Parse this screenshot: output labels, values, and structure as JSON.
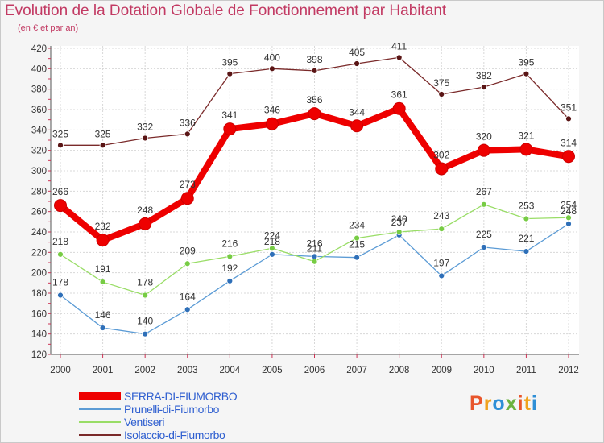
{
  "header": {
    "title": "Evolution de la Dotation Globale de Fonctionnement par Habitant",
    "subtitle": "(en € et par an)"
  },
  "logo": {
    "text": "Proxiti",
    "colors": [
      "#e8552b",
      "#f0a21c",
      "#2e8fd6",
      "#6cb33f",
      "#e8552b",
      "#f0a21c",
      "#2e8fd6"
    ]
  },
  "chart_data": {
    "type": "line",
    "x": [
      "2000",
      "2001",
      "2002",
      "2003",
      "2004",
      "2005",
      "2006",
      "2007",
      "2008",
      "2009",
      "2010",
      "2011",
      "2012"
    ],
    "ylim": [
      120,
      420
    ],
    "yticks": [
      120,
      140,
      160,
      180,
      200,
      220,
      240,
      260,
      280,
      300,
      320,
      340,
      360,
      380,
      400,
      420
    ],
    "grid": true,
    "legend_position": "bottom-left",
    "series": [
      {
        "name": "SERRA-DI-FIUMORBO",
        "color": "#ee0000",
        "values": [
          266,
          232,
          248,
          273,
          341,
          346,
          356,
          344,
          361,
          302,
          320,
          321,
          314
        ]
      },
      {
        "name": "Prunelli-di-Fiumorbo",
        "color": "#5b9bd5",
        "values": [
          178,
          146,
          140,
          164,
          192,
          218,
          216,
          215,
          237,
          197,
          225,
          221,
          248
        ]
      },
      {
        "name": "Ventiseri",
        "color": "#99dd66",
        "values": [
          218,
          191,
          178,
          209,
          216,
          224,
          211,
          234,
          240,
          243,
          267,
          253,
          254
        ]
      },
      {
        "name": "Isolaccio-di-Fiumorbo",
        "color": "#7a2a2a",
        "values": [
          325,
          325,
          332,
          336,
          395,
          400,
          398,
          405,
          411,
          375,
          382,
          395,
          351
        ]
      }
    ]
  }
}
